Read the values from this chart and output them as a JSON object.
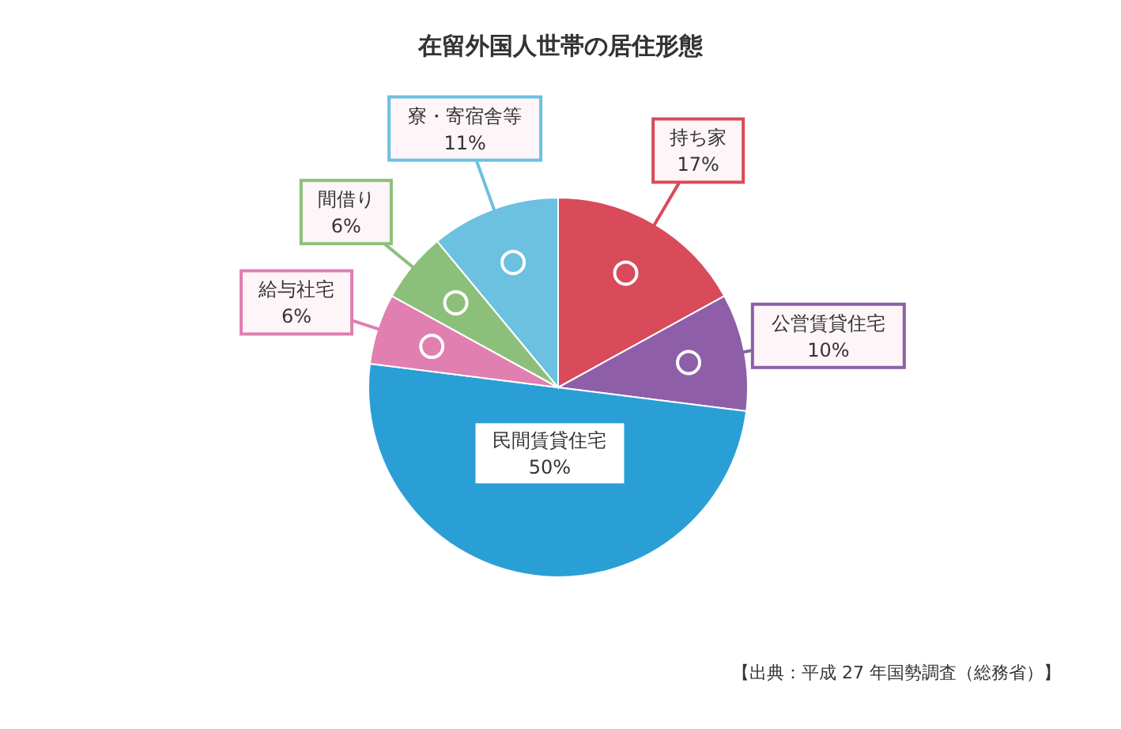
{
  "chart_data": {
    "type": "pie",
    "title": "在留外国人世帯の居住形態",
    "categories": [
      "持ち家",
      "公営賃貸住宅",
      "民間賃貸住宅",
      "給与社宅",
      "間借り",
      "寮・寄宿舎等"
    ],
    "values": [
      17,
      10,
      50,
      6,
      6,
      11
    ],
    "value_labels": [
      "17%",
      "10%",
      "50%",
      "6%",
      "6%",
      "11%"
    ],
    "colors": [
      "#d94a5a",
      "#8e5fa8",
      "#2a9fd6",
      "#e07fb0",
      "#8cc07a",
      "#6cc0e0"
    ],
    "annotations": [
      "【出典：平成 27 年国勢調査（総務省）】"
    ]
  }
}
